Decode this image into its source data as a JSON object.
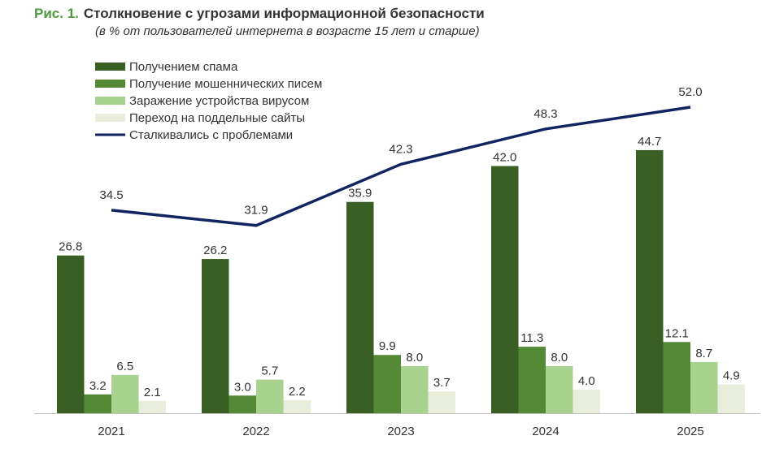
{
  "figure": {
    "label": "Рис. 1.",
    "title": "Столкновение с угрозами информационной безопасности",
    "subtitle": "(в % от пользователей интернета в возрасте 15 лет и старше)"
  },
  "colors": {
    "spam": "#3a5f24",
    "phishing": "#548a36",
    "virus": "#a7d38e",
    "fake_sites": "#e8eddc",
    "problems_line": "#0f2461",
    "label_text": "#333333",
    "axis": "#bfbfbf"
  },
  "chart_data": {
    "type": "bar",
    "categories": [
      "2021",
      "2022",
      "2023",
      "2024",
      "2025"
    ],
    "series": [
      {
        "key": "spam",
        "name": "Получением спама",
        "type": "bar",
        "values": [
          26.8,
          26.2,
          35.9,
          42.0,
          44.7
        ]
      },
      {
        "key": "phishing",
        "name": "Получение мошеннических писем",
        "type": "bar",
        "values": [
          3.2,
          3.0,
          9.9,
          11.3,
          12.1
        ]
      },
      {
        "key": "virus",
        "name": "Заражение устройства вирусом",
        "type": "bar",
        "values": [
          6.5,
          5.7,
          8.0,
          8.0,
          8.7
        ]
      },
      {
        "key": "fake_sites",
        "name": "Переход на поддельные сайты",
        "type": "bar",
        "values": [
          2.1,
          2.2,
          3.7,
          4.0,
          4.9
        ]
      },
      {
        "key": "problems_line",
        "name": "Сталкивались с проблемами",
        "type": "line",
        "values": [
          34.5,
          31.9,
          42.3,
          48.3,
          52.0
        ]
      }
    ],
    "ylim": [
      0,
      55
    ],
    "legend_position": "top-left",
    "grid": false,
    "data_labels": true,
    "decimals": 1
  }
}
